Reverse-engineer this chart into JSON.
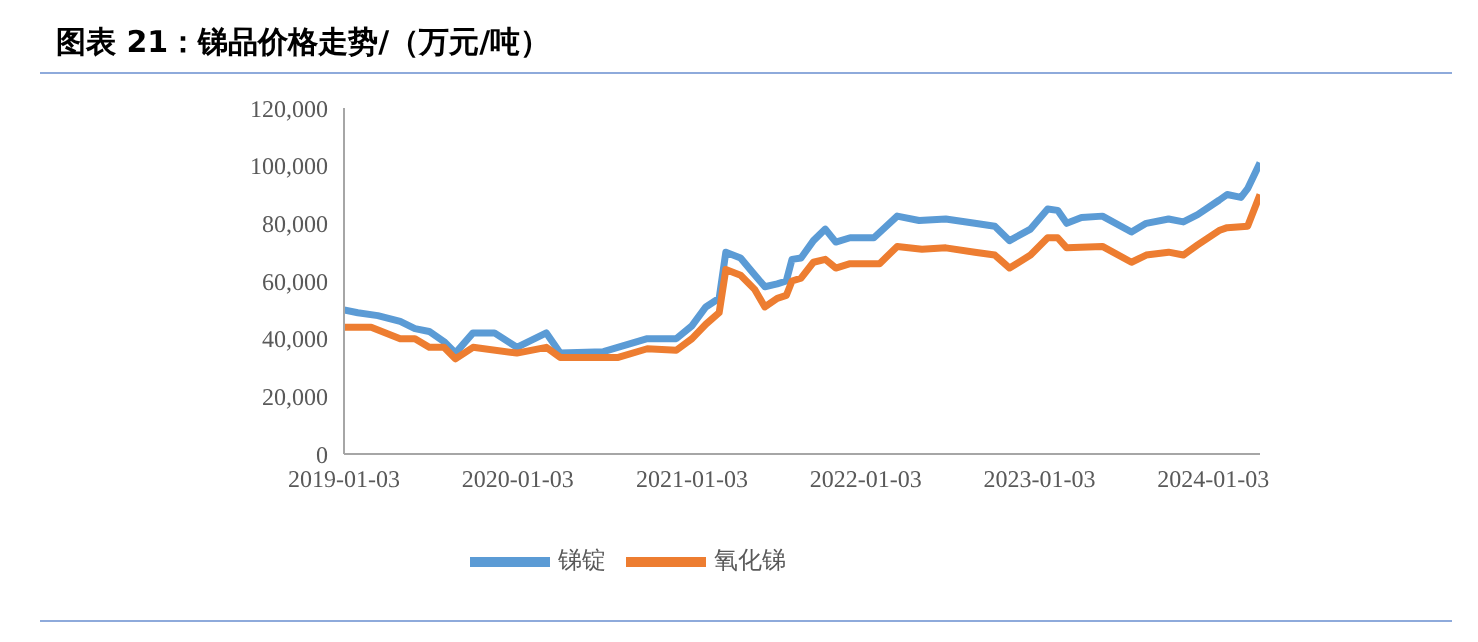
{
  "chart_data": {
    "type": "line",
    "title": "图表 21：锑品价格走势/（万元/吨）",
    "xlim": [
      "2019-01-03",
      "2024-04-10"
    ],
    "xticks": [
      "2019-01-03",
      "2020-01-03",
      "2021-01-03",
      "2022-01-03",
      "2023-01-03",
      "2024-01-03"
    ],
    "ylim": [
      0,
      120000
    ],
    "yticks": [
      {
        "value": 0,
        "label": "0"
      },
      {
        "value": 20000,
        "label": "20,000"
      },
      {
        "value": 40000,
        "label": "40,000"
      },
      {
        "value": 60000,
        "label": "60,000"
      },
      {
        "value": 80000,
        "label": "80,000"
      },
      {
        "value": 100000,
        "label": "100,000"
      },
      {
        "value": 120000,
        "label": "120,000"
      }
    ],
    "legend": "bottom",
    "marker": "none",
    "line_style": "solid",
    "series": [
      {
        "name": "锑锭",
        "color": "#5b9bd5",
        "x": [
          "2019-01-03",
          "2019-02-01",
          "2019-03-15",
          "2019-05-01",
          "2019-06-01",
          "2019-07-01",
          "2019-08-01",
          "2019-08-25",
          "2019-10-01",
          "2019-11-15",
          "2020-01-01",
          "2020-03-03",
          "2020-04-01",
          "2020-07-01",
          "2020-10-01",
          "2020-12-01",
          "2021-01-03",
          "2021-02-01",
          "2021-03-01",
          "2021-03-15",
          "2021-04-15",
          "2021-05-10",
          "2021-06-05",
          "2021-07-01",
          "2021-07-20",
          "2021-08-01",
          "2021-08-20",
          "2021-09-15",
          "2021-10-10",
          "2021-11-01",
          "2021-12-01",
          "2022-01-20",
          "2022-03-10",
          "2022-04-25",
          "2022-06-20",
          "2022-08-20",
          "2022-10-01",
          "2022-11-01",
          "2022-12-15",
          "2023-01-20",
          "2023-02-10",
          "2023-03-01",
          "2023-04-01",
          "2023-05-15",
          "2023-07-15",
          "2023-08-15",
          "2023-10-01",
          "2023-11-01",
          "2023-12-01",
          "2024-01-15",
          "2024-02-01",
          "2024-03-01",
          "2024-03-15",
          "2024-04-10"
        ],
        "values": [
          50000,
          49000,
          48000,
          46000,
          43500,
          42500,
          39000,
          35000,
          42000,
          42000,
          37000,
          42000,
          35000,
          35500,
          40000,
          40000,
          44500,
          51000,
          54000,
          70000,
          68000,
          63000,
          58000,
          59000,
          60000,
          67500,
          68000,
          74000,
          78000,
          73500,
          75000,
          75000,
          82500,
          81000,
          81500,
          80000,
          79000,
          74000,
          78000,
          85000,
          84500,
          80000,
          82000,
          82500,
          77000,
          80000,
          81500,
          80500,
          83000,
          88000,
          90000,
          89000,
          92000,
          101000
        ]
      },
      {
        "name": "氧化锑",
        "color": "#ed7d31",
        "x": [
          "2019-01-03",
          "2019-03-01",
          "2019-05-01",
          "2019-06-01",
          "2019-07-01",
          "2019-08-01",
          "2019-08-25",
          "2019-10-01",
          "2020-01-01",
          "2020-03-03",
          "2020-04-01",
          "2020-08-01",
          "2020-10-01",
          "2020-12-01",
          "2021-01-03",
          "2021-02-01",
          "2021-03-01",
          "2021-03-15",
          "2021-04-15",
          "2021-05-15",
          "2021-06-05",
          "2021-07-01",
          "2021-07-20",
          "2021-08-01",
          "2021-08-20",
          "2021-09-15",
          "2021-10-10",
          "2021-11-01",
          "2021-12-01",
          "2022-02-01",
          "2022-03-10",
          "2022-05-01",
          "2022-06-20",
          "2022-08-20",
          "2022-10-01",
          "2022-11-01",
          "2022-12-15",
          "2023-01-20",
          "2023-02-10",
          "2023-03-01",
          "2023-05-15",
          "2023-07-15",
          "2023-08-15",
          "2023-10-01",
          "2023-11-01",
          "2023-12-01",
          "2024-01-15",
          "2024-02-01",
          "2024-03-15",
          "2024-04-10"
        ],
        "values": [
          44000,
          44000,
          40000,
          40000,
          37000,
          37000,
          33000,
          37000,
          35000,
          37000,
          33500,
          33500,
          36500,
          36000,
          40000,
          45000,
          49000,
          64000,
          62000,
          57000,
          51000,
          54000,
          55000,
          60000,
          61000,
          66500,
          67500,
          64500,
          66000,
          66000,
          72000,
          71000,
          71500,
          70000,
          69000,
          64500,
          69000,
          75000,
          75000,
          71500,
          72000,
          66500,
          69000,
          70000,
          69000,
          72500,
          77500,
          78500,
          79000,
          90000
        ]
      }
    ]
  }
}
